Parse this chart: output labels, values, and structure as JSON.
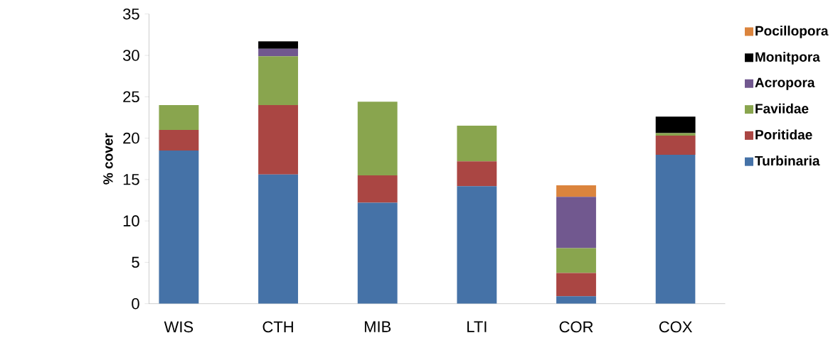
{
  "chart_data": {
    "type": "bar",
    "stacked": true,
    "ylabel": "% cover",
    "categories": [
      "WIS",
      "CTH",
      "MIB",
      "LTI",
      "COR",
      "COX"
    ],
    "series": [
      {
        "name": "Turbinaria",
        "color": "#4572a7",
        "values": [
          18.5,
          15.6,
          12.2,
          14.2,
          0.9,
          18.0
        ]
      },
      {
        "name": "Poritidae",
        "color": "#aa4643",
        "values": [
          2.5,
          8.4,
          3.3,
          3.0,
          2.8,
          2.3
        ]
      },
      {
        "name": "Faviidae",
        "color": "#89a54e",
        "values": [
          3.0,
          5.9,
          8.9,
          4.3,
          3.0,
          0.3
        ]
      },
      {
        "name": "Acropora",
        "color": "#71588f",
        "values": [
          0,
          0.9,
          0,
          0,
          6.2,
          0
        ]
      },
      {
        "name": "Monitpora",
        "color": "#000000",
        "values": [
          0,
          0.9,
          0,
          0,
          0,
          2.0
        ]
      },
      {
        "name": "Pocillopora",
        "color": "#db843d",
        "values": [
          0,
          0,
          0,
          0,
          1.4,
          0
        ]
      }
    ],
    "ylim": [
      0,
      35
    ],
    "yticks": [
      0,
      5,
      10,
      15,
      20,
      25,
      30,
      35
    ],
    "grid": false,
    "legend": "right"
  }
}
